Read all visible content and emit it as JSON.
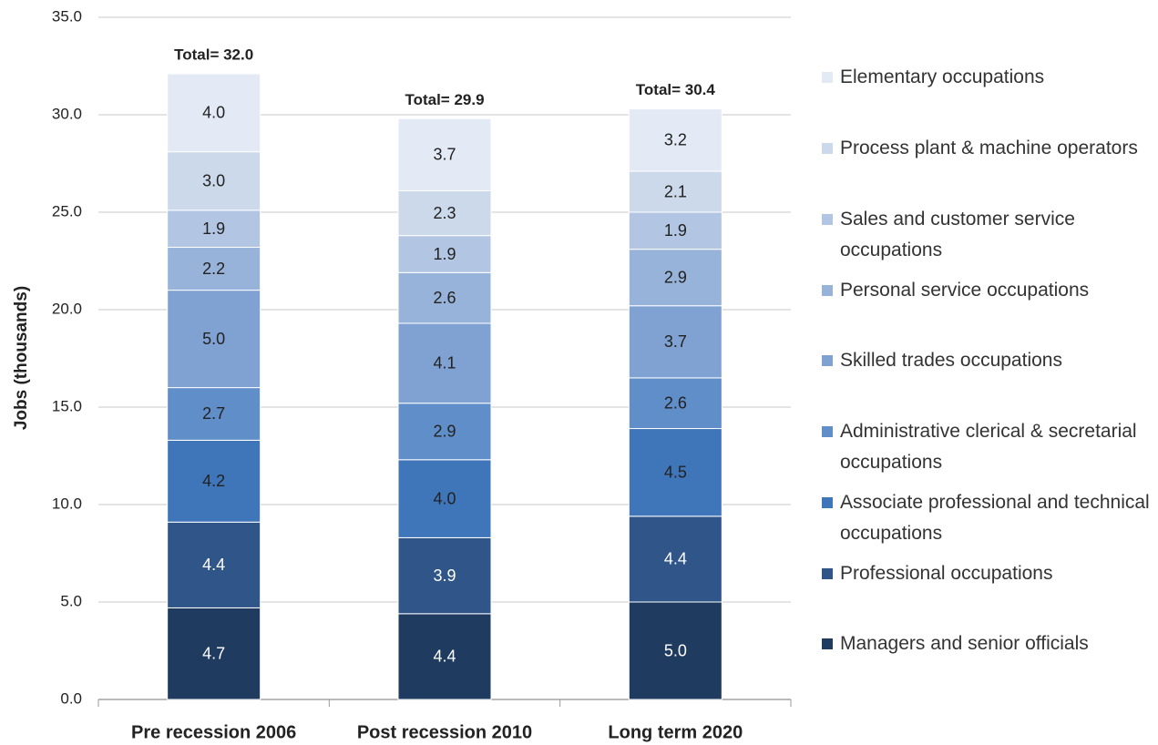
{
  "chart_data": {
    "type": "stacked_bar",
    "ylabel": "Jobs (thousands)",
    "categories": [
      "Pre recession 2006",
      "Post recession 2010",
      "Long term 2020"
    ],
    "series": [
      {
        "name": "Managers and senior officials",
        "color": "#1f3b60",
        "values": [
          4.7,
          4.4,
          5.0
        ],
        "value_labels": [
          "4.7",
          "4.4",
          "5.0"
        ]
      },
      {
        "name": "Professional occupations",
        "color": "#2f5589",
        "values": [
          4.4,
          3.9,
          4.4
        ],
        "value_labels": [
          "4.4",
          "3.9",
          "4.4"
        ]
      },
      {
        "name": "Associate professional and technical occupations",
        "color": "#3f75b9",
        "values": [
          4.2,
          4.0,
          4.5
        ],
        "value_labels": [
          "4.2",
          "4.0",
          "4.5"
        ]
      },
      {
        "name": "Administrative clerical & secretarial occupations",
        "color": "#5f8ec9",
        "values": [
          2.7,
          2.9,
          2.6
        ],
        "value_labels": [
          "2.7",
          "2.9",
          "2.6"
        ]
      },
      {
        "name": "Skilled trades occupations",
        "color": "#7fa2d2",
        "values": [
          5.0,
          4.1,
          3.7
        ],
        "value_labels": [
          "5.0",
          "4.1",
          "3.7"
        ]
      },
      {
        "name": "Personal service occupations",
        "color": "#98b3da",
        "values": [
          2.2,
          2.6,
          2.9
        ],
        "value_labels": [
          "2.2",
          "2.6",
          "2.9"
        ]
      },
      {
        "name": "Sales and customer service occupations",
        "color": "#b2c6e3",
        "values": [
          1.9,
          1.9,
          1.9
        ],
        "value_labels": [
          "1.9",
          "1.9",
          "1.9"
        ]
      },
      {
        "name": "Process plant & machine operators",
        "color": "#ccd9eb",
        "values": [
          3.0,
          2.3,
          2.1
        ],
        "value_labels": [
          "3.0",
          "2.3",
          "2.1"
        ]
      },
      {
        "name": "Elementary occupations",
        "color": "#e3eaf5",
        "values": [
          4.0,
          3.7,
          3.2
        ],
        "value_labels": [
          "4.0",
          "3.7",
          "3.2"
        ]
      }
    ],
    "total_labels": [
      "Total= 32.0",
      "Total= 29.9",
      "Total= 30.4"
    ],
    "ylim": [
      0,
      35
    ],
    "yticks": [
      {
        "value": 0,
        "label": "0.0"
      },
      {
        "value": 5,
        "label": "5.0"
      },
      {
        "value": 10,
        "label": "10.0"
      },
      {
        "value": 15,
        "label": "15.0"
      },
      {
        "value": 20,
        "label": "20.0"
      },
      {
        "value": 25,
        "label": "25.0"
      },
      {
        "value": 30,
        "label": "30.0"
      },
      {
        "value": 35,
        "label": "35.0"
      }
    ],
    "grid": true,
    "legend": "right"
  }
}
